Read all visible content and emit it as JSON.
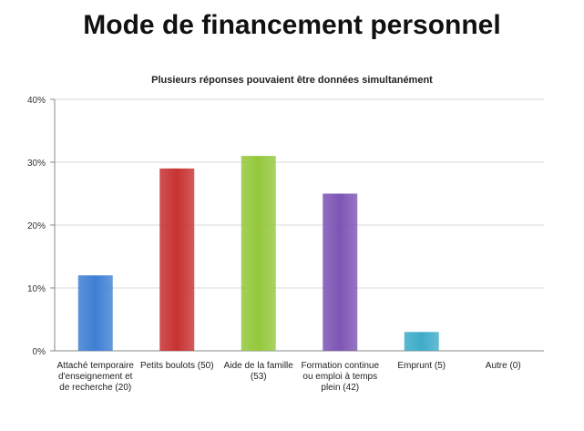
{
  "chart_data": {
    "type": "bar",
    "title": "Mode de financement personnel",
    "subtitle": "Plusieurs réponses pouvaient être données simultanément",
    "xlabel": "",
    "ylabel": "",
    "ylim": [
      0,
      40
    ],
    "y_ticks": [
      "0%",
      "10%",
      "20%",
      "30%",
      "40%"
    ],
    "grid": true,
    "legend": "none",
    "categories": [
      "Attaché temporaire d'enseignement et de recherche (20)",
      "Petits boulots (50)",
      "Aide de la famille (53)",
      "Formation continue ou emploi à temps plein (42)",
      "Emprunt (5)",
      "Autre (0)"
    ],
    "values": [
      12,
      29,
      31,
      25,
      3,
      0
    ],
    "colors": [
      "#3f7fd4",
      "#c83232",
      "#94c83c",
      "#7d55b4",
      "#3eacc8",
      "#f08c28"
    ]
  }
}
